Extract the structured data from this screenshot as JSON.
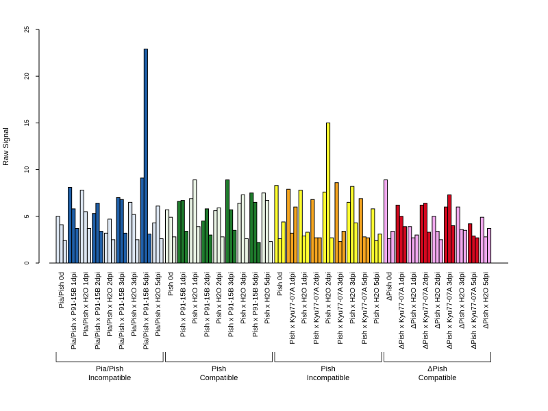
{
  "chart_data": {
    "type": "bar",
    "ylabel": "Raw Signal",
    "ylim": [
      0,
      25
    ],
    "yticks": [
      0,
      5,
      10,
      15,
      20,
      25
    ],
    "replicates_per_category": 3,
    "groups": [
      {
        "label_line1": "Pia/Pish",
        "label_line2": "Incompatible",
        "colors": {
          "control": "#dce6f2",
          "treated": "#1f5fa8"
        },
        "categories": [
          {
            "label": "Pia/Pish 0d",
            "treated": false,
            "values": [
              5.0,
              4.1,
              2.4
            ]
          },
          {
            "label": "Pia/Pish x P91-15B 1dpi",
            "treated": true,
            "values": [
              8.1,
              5.8,
              3.7
            ]
          },
          {
            "label": "Pia/Pish x H2O 1dpi",
            "treated": false,
            "values": [
              7.8,
              5.5,
              3.7
            ]
          },
          {
            "label": "Pia/Pish x P91-15B 2dpi",
            "treated": true,
            "values": [
              5.3,
              6.4,
              3.4
            ]
          },
          {
            "label": "Pia/Pish x H2O 2dpi",
            "treated": false,
            "values": [
              3.2,
              4.7,
              2.5
            ]
          },
          {
            "label": "Pia/Pish x P91-15B 3dpi",
            "treated": true,
            "values": [
              7.0,
              6.8,
              3.2
            ]
          },
          {
            "label": "Pia/Pish x H2O 3dpi",
            "treated": false,
            "values": [
              6.5,
              5.2,
              2.5
            ]
          },
          {
            "label": "Pia/Pish x P91-15B 5dpi",
            "treated": true,
            "values": [
              9.1,
              22.9,
              3.1
            ]
          },
          {
            "label": "Pia/Pish x H2O 5dpi",
            "treated": false,
            "values": [
              4.3,
              6.1,
              2.6
            ]
          }
        ]
      },
      {
        "label_line1": "Pish",
        "label_line2": "Compatible",
        "colors": {
          "control": "#e9f3e4",
          "treated": "#1e7a2c"
        },
        "categories": [
          {
            "label": "Pish 0d",
            "treated": false,
            "values": [
              5.7,
              4.9,
              2.8
            ]
          },
          {
            "label": "Pish x P91-15B 1dpi",
            "treated": true,
            "values": [
              6.6,
              6.7,
              3.4
            ]
          },
          {
            "label": "Pish x H2O 1dpi",
            "treated": false,
            "values": [
              6.9,
              8.9,
              3.9
            ]
          },
          {
            "label": "Pish x P91-15B 2dpi",
            "treated": true,
            "values": [
              4.5,
              5.8,
              3.0
            ]
          },
          {
            "label": "Pish x H2O 2dpi",
            "treated": false,
            "values": [
              5.6,
              5.9,
              2.8
            ]
          },
          {
            "label": "Pish x P91-15B 3dpi",
            "treated": true,
            "values": [
              8.9,
              5.7,
              3.5
            ]
          },
          {
            "label": "Pish x H2O 3dpi",
            "treated": false,
            "values": [
              6.4,
              7.3,
              2.6
            ]
          },
          {
            "label": "Pish x P91-15B 5dpi",
            "treated": true,
            "values": [
              7.5,
              6.5,
              2.2
            ]
          },
          {
            "label": "Pish x H2O 5dpi",
            "treated": false,
            "values": [
              7.5,
              6.7,
              2.3
            ]
          }
        ]
      },
      {
        "label_line1": "Pish",
        "label_line2": "Incompatible",
        "colors": {
          "control": "#ffff30",
          "treated": "#f5a520"
        },
        "categories": [
          {
            "label": "Pish 0d",
            "treated": false,
            "values": [
              8.3,
              2.6,
              4.4
            ]
          },
          {
            "label": "Pish x Kyu77-07A 1dpi",
            "treated": true,
            "values": [
              7.9,
              3.2,
              6.0
            ]
          },
          {
            "label": "Pish x H2O 1dpi",
            "treated": false,
            "values": [
              7.8,
              2.9,
              3.3
            ]
          },
          {
            "label": "Pish x Kyu77-07A 2dpi",
            "treated": true,
            "values": [
              6.8,
              2.7,
              2.7
            ]
          },
          {
            "label": "Pish x H2O 2dpi",
            "treated": false,
            "values": [
              7.6,
              15.0,
              2.7
            ]
          },
          {
            "label": "Pish x Kyu77-07A 3dpi",
            "treated": true,
            "values": [
              8.6,
              2.3,
              3.4
            ]
          },
          {
            "label": "Pish x H2O 3dpi",
            "treated": false,
            "values": [
              6.5,
              8.2,
              4.3
            ]
          },
          {
            "label": "Pish x Kyu77-07A 5dpi",
            "treated": true,
            "values": [
              6.9,
              2.8,
              2.7
            ]
          },
          {
            "label": "Pish x H2O 5dpi",
            "treated": false,
            "values": [
              5.8,
              2.4,
              3.1
            ]
          }
        ]
      },
      {
        "label_line1": "ΔPish",
        "label_line2": "Compatible",
        "colors": {
          "control": "#f0a8ee",
          "treated": "#d4081f"
        },
        "categories": [
          {
            "label": "ΔPish 0d",
            "treated": false,
            "values": [
              8.9,
              2.6,
              3.4
            ]
          },
          {
            "label": "ΔPish x Kyu77-07A 1dpi",
            "treated": true,
            "values": [
              6.2,
              5.0,
              3.9
            ]
          },
          {
            "label": "ΔPish x H2O 1dpi",
            "treated": false,
            "values": [
              3.9,
              2.7,
              3.0
            ]
          },
          {
            "label": "ΔPish x Kyu77-07A 2dpi",
            "treated": true,
            "values": [
              6.2,
              6.4,
              3.3
            ]
          },
          {
            "label": "ΔPish x H2O 2dpi",
            "treated": false,
            "values": [
              5.0,
              3.4,
              2.5
            ]
          },
          {
            "label": "ΔPish x Kyu77-07A 3dpi",
            "treated": true,
            "values": [
              6.0,
              7.3,
              4.0
            ]
          },
          {
            "label": "ΔPish x H2O 3dpi",
            "treated": false,
            "values": [
              6.0,
              3.6,
              3.5
            ]
          },
          {
            "label": "ΔPish x Kyu77-07A 5dpi",
            "treated": true,
            "values": [
              4.2,
              2.9,
              2.7
            ]
          },
          {
            "label": "ΔPish x H2O 5dpi",
            "treated": false,
            "values": [
              4.9,
              2.8,
              3.7
            ]
          }
        ]
      }
    ]
  }
}
